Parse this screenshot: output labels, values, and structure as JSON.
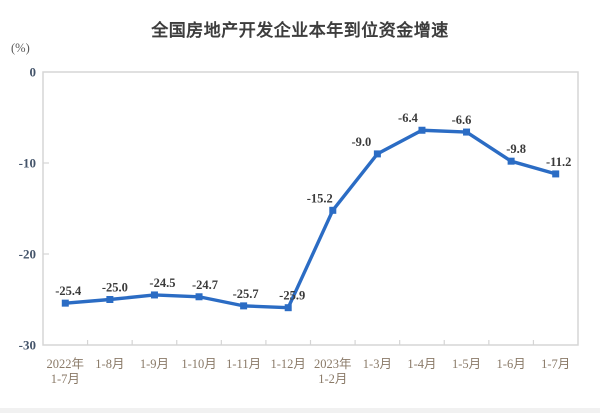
{
  "page": {
    "background": "#ffffff",
    "footer_strip_color": "#f1f1f1"
  },
  "chart_data": {
    "type": "line",
    "title": "全国房地产开发企业本年到位资金增速",
    "unit_label": "(%)",
    "categories": [
      "2022年\n1-7月",
      "1-8月",
      "1-9月",
      "1-10月",
      "1-11月",
      "1-12月",
      "2023年\n1-2月",
      "1-3月",
      "1-4月",
      "1-5月",
      "1-6月",
      "1-7月"
    ],
    "values": [
      -25.4,
      -25.0,
      -24.5,
      -24.7,
      -25.7,
      -25.9,
      -15.2,
      -9.0,
      -6.4,
      -6.6,
      -9.8,
      -11.2
    ],
    "point_labels": [
      "-25.4",
      "-25.0",
      "-24.5",
      "-24.7",
      "-25.7",
      "-25.9",
      "-15.2",
      "-9.0",
      "-6.4",
      "-6.6",
      "-9.8",
      "-11.2"
    ],
    "y_ticks": [
      0,
      -10,
      -20,
      -30
    ],
    "y_tick_labels": [
      "0",
      "-10",
      "-20",
      "-30"
    ],
    "ylim": [
      -30,
      0
    ],
    "grid": false,
    "legend": "none",
    "marker": "square",
    "line_color": "#2b6cc4",
    "colors": {
      "title": "#3d3d3d",
      "data_label": "#3a3a3a",
      "y_tick_label": "#44546a",
      "x_tick_label": "#8a7a68",
      "axis_border": "#d5d5d5"
    },
    "label_dx": [
      3,
      5,
      8,
      6,
      2,
      4,
      -13,
      -16,
      -14,
      -5,
      5,
      3
    ]
  }
}
